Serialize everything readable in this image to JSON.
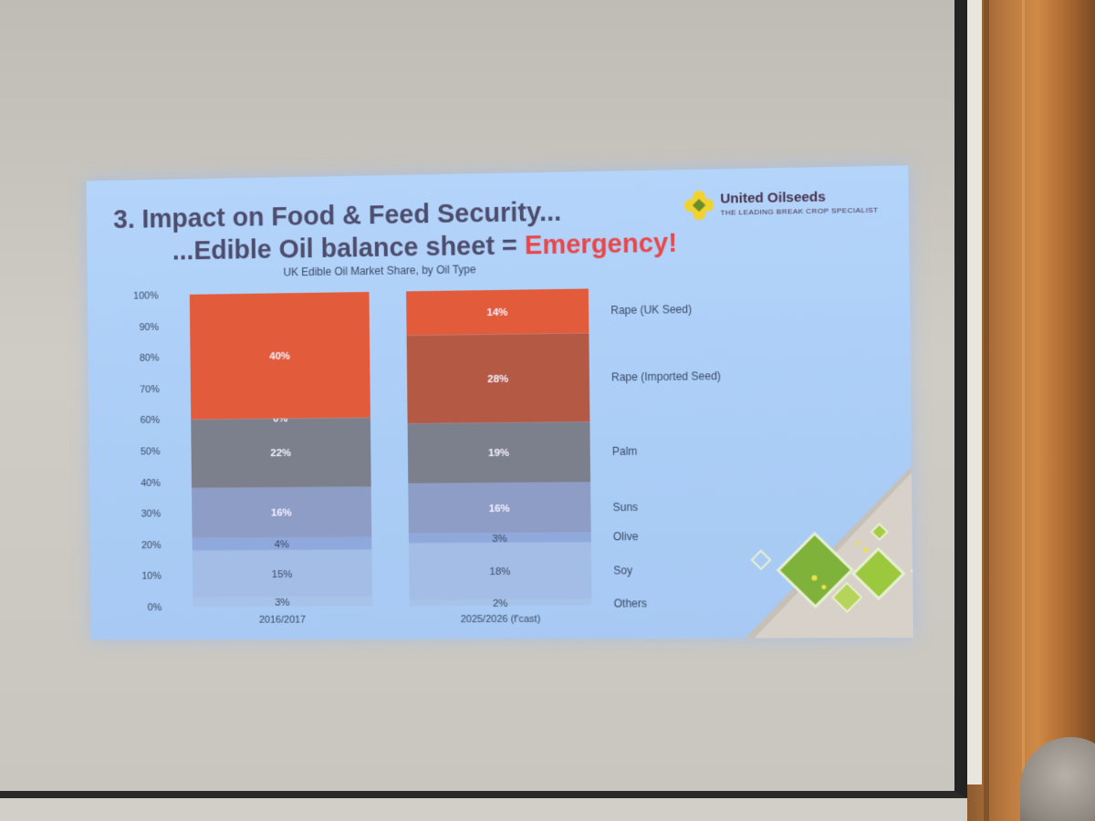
{
  "slide": {
    "title_line1": "3. Impact on Food & Feed Security...",
    "title_line2_prefix": "...Edible Oil balance sheet = ",
    "title_line2_emphasis": "Emergency!",
    "logo_name": "United Oilseeds",
    "logo_tagline": "THE LEADING BREAK CROP SPECIALIST",
    "colors": {
      "emphasis": "#e8474a",
      "title": "#4d4c6c",
      "background": "#aacdf6"
    }
  },
  "chart_data": {
    "type": "bar",
    "stacked": true,
    "title": "UK Edible Oil Market Share, by Oil Type",
    "categories": [
      "2016/2017",
      "2025/2026 (f'cast)"
    ],
    "series": [
      {
        "name": "Others",
        "values": [
          3,
          2
        ],
        "labels": [
          "3%",
          "2%"
        ],
        "color": "#a8c3ea"
      },
      {
        "name": "Soy",
        "values": [
          15,
          18
        ],
        "labels": [
          "15%",
          "18%"
        ],
        "color": "#a4bde6"
      },
      {
        "name": "Olive",
        "values": [
          4,
          3
        ],
        "labels": [
          "4%",
          "3%"
        ],
        "color": "#8fa9dc"
      },
      {
        "name": "Suns",
        "values": [
          16,
          16
        ],
        "labels": [
          "16%",
          "16%"
        ],
        "color": "#8e9dc6"
      },
      {
        "name": "Palm",
        "values": [
          22,
          19
        ],
        "labels": [
          "22%",
          "19%"
        ],
        "color": "#7c7f8c"
      },
      {
        "name": "Rape (Imported Seed)",
        "values": [
          0,
          28
        ],
        "labels": [
          "0%",
          "28%"
        ],
        "color": "#b45a44"
      },
      {
        "name": "Rape (UK Seed)",
        "values": [
          40,
          14
        ],
        "labels": [
          "40%",
          "14%"
        ],
        "color": "#e25b3a"
      }
    ],
    "y_ticks": [
      "0%",
      "10%",
      "20%",
      "30%",
      "40%",
      "50%",
      "60%",
      "70%",
      "80%",
      "90%",
      "100%"
    ],
    "ylim": [
      0,
      100
    ],
    "legend_placement": "right",
    "grid": false
  }
}
